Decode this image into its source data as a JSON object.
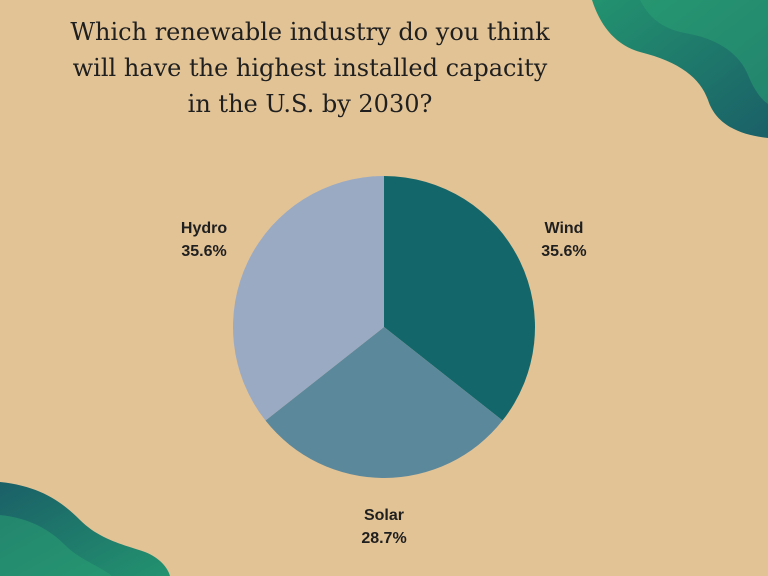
{
  "title": "Which renewable industry do you think will have the highest installed capacity in the U.S. by 2030?",
  "colors": {
    "background": "#e2c396",
    "decor_dark": "#1b6a68",
    "decor_light": "#24916f"
  },
  "chart_data": {
    "type": "pie",
    "title": "Which renewable industry do you think will have the highest installed capacity in the U.S. by 2030?",
    "slices": [
      {
        "label": "Wind",
        "value": 35.6,
        "display": "35.6%",
        "color": "#13676a"
      },
      {
        "label": "Solar",
        "value": 28.7,
        "display": "28.7%",
        "color": "#5c889b"
      },
      {
        "label": "Hydro",
        "value": 35.6,
        "display": "35.6%",
        "color": "#9aaac3"
      }
    ],
    "start_angle_deg": 0,
    "direction": "clockwise",
    "legend": "none",
    "label_placement": "outside"
  }
}
